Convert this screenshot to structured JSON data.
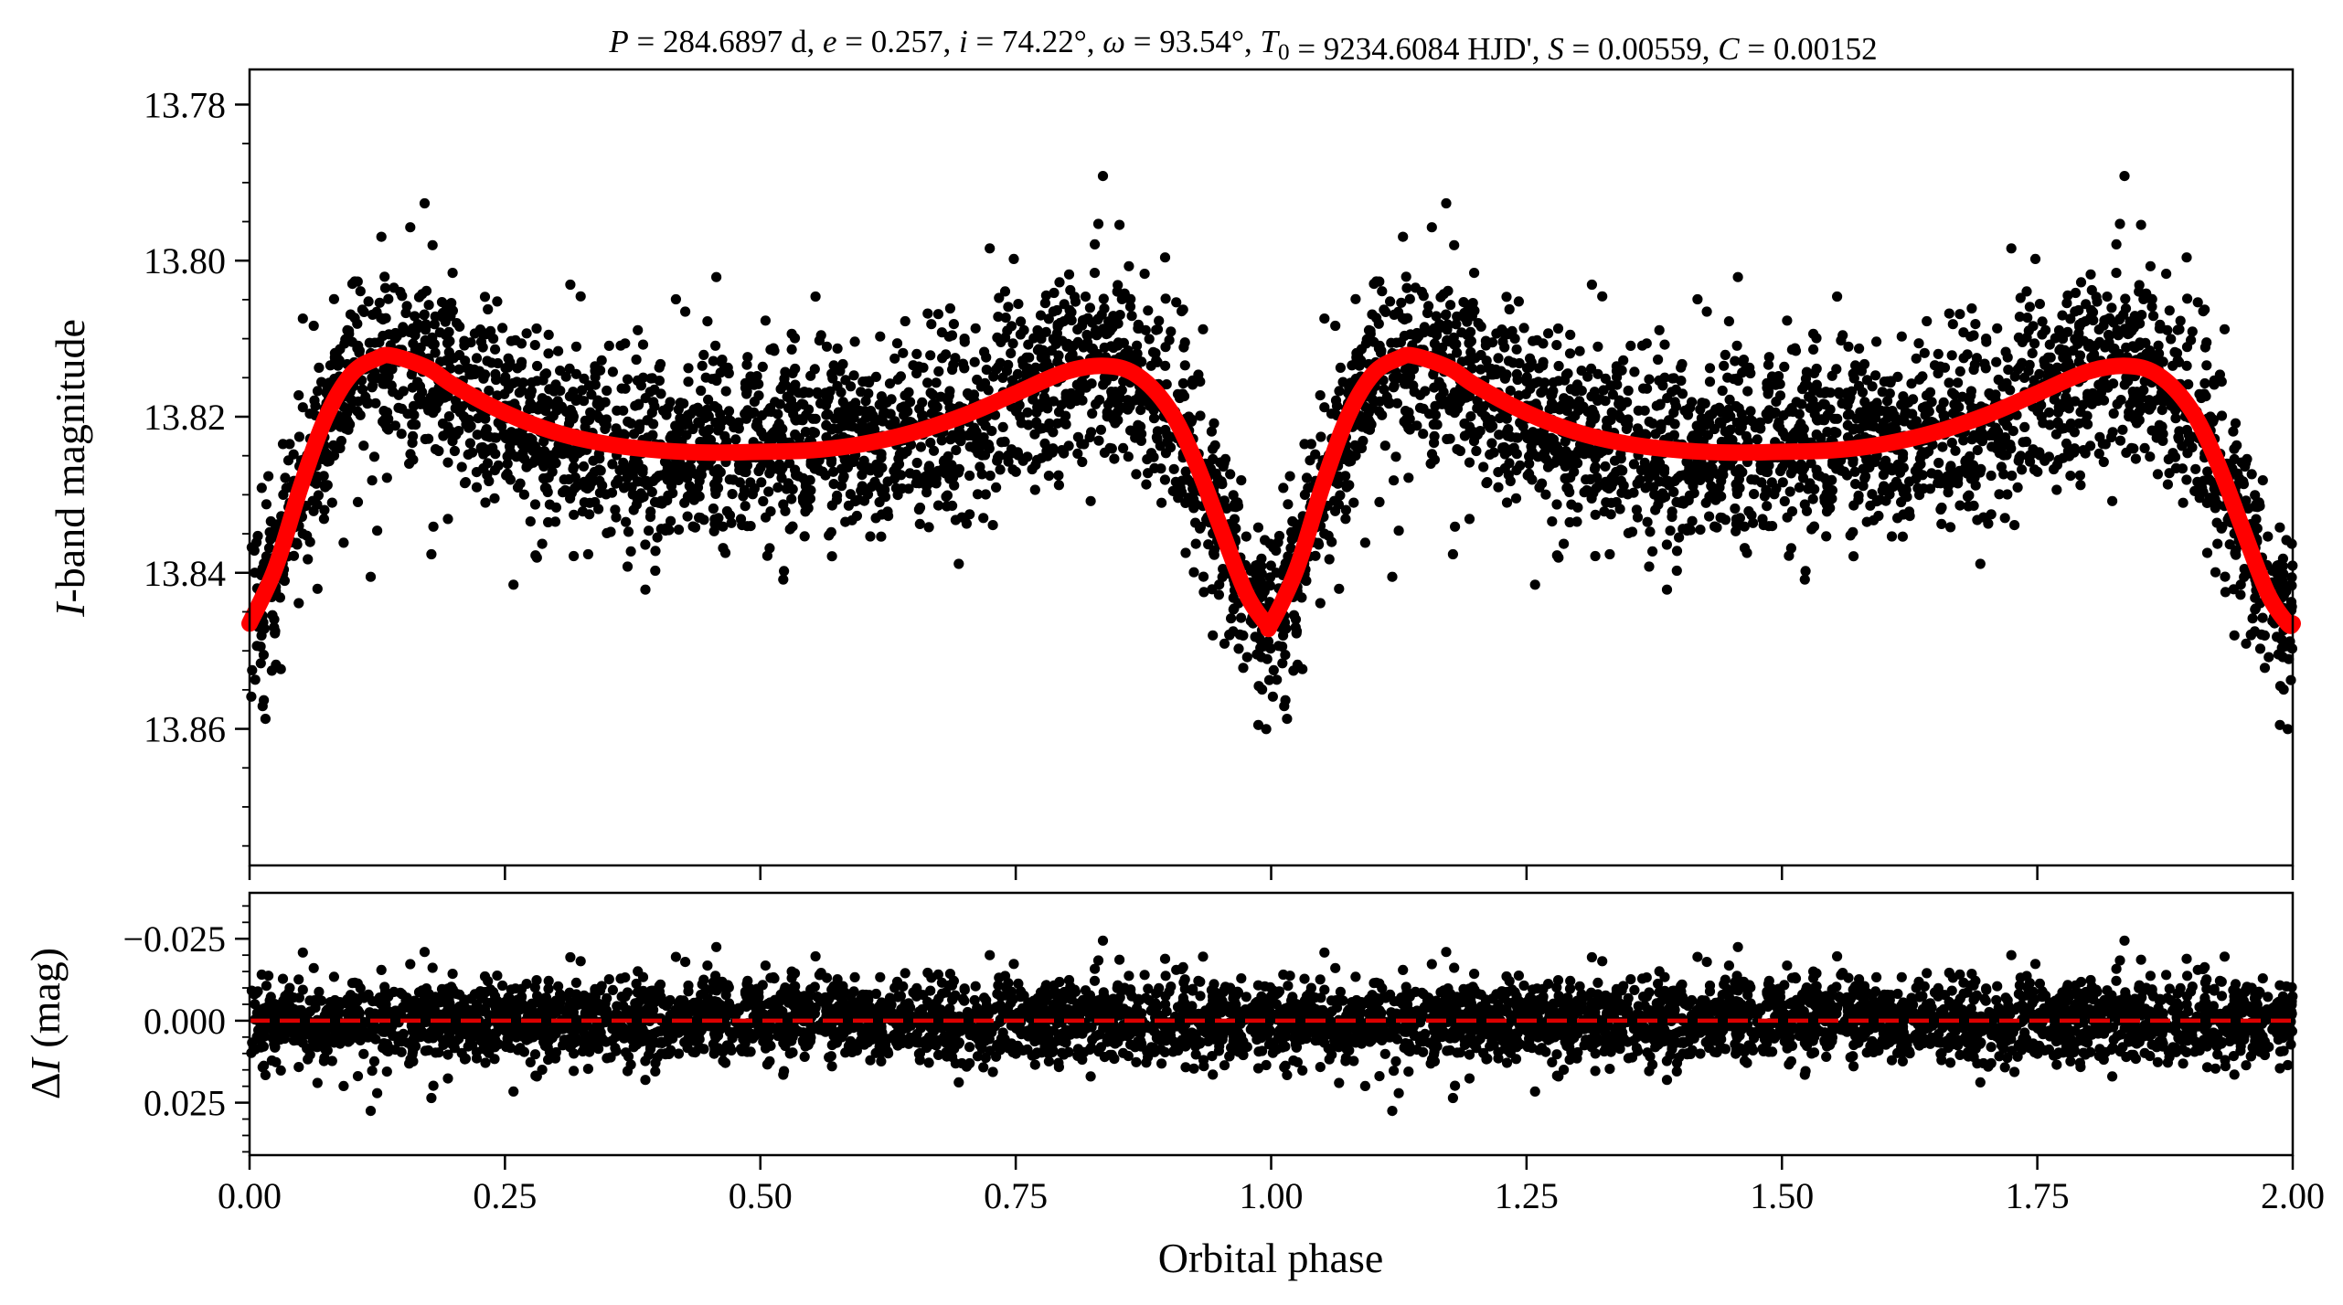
{
  "figure": {
    "title_parts": [
      {
        "it": "P"
      },
      {
        "t": " = 284.6897 d, "
      },
      {
        "it": "e"
      },
      {
        "t": " = 0.257, "
      },
      {
        "it": "i"
      },
      {
        "t": " = 74.22°, "
      },
      {
        "it": "ω"
      },
      {
        "t": " = 93.54°, "
      },
      {
        "it": "T"
      },
      {
        "sub": "0"
      },
      {
        "t": " = 9234.6084 HJD', "
      },
      {
        "it": "S"
      },
      {
        "t": " = 0.00559, "
      },
      {
        "it": "C"
      },
      {
        "t": " = 0.00152"
      }
    ]
  },
  "chart_data": [
    {
      "type": "scatter",
      "panel": "light-curve",
      "xlabel": "Orbital phase",
      "ylabel_parts": [
        {
          "it": "I"
        },
        {
          "t": "-band magnitude"
        }
      ],
      "xlim": [
        0.0,
        2.0
      ],
      "ylim": [
        13.8775,
        13.7755
      ],
      "y_inverted": true,
      "yticks": [
        13.78,
        13.8,
        13.82,
        13.84,
        13.86
      ],
      "ytick_labels": [
        "13.78",
        "13.80",
        "13.82",
        "13.84",
        "13.86"
      ],
      "xticks": [
        0.0,
        0.25,
        0.5,
        0.75,
        1.0,
        1.25,
        1.5,
        1.75,
        2.0
      ],
      "series": [
        {
          "kind": "observations",
          "color": "#000000",
          "point_count_approx": 4800,
          "scatter_sd_mag": 0.006
        },
        {
          "kind": "model",
          "color": "#ff0000",
          "style": "solid-thick",
          "x": [
            0.0,
            0.025,
            0.05,
            0.075,
            0.1,
            0.125,
            0.14,
            0.175,
            0.2,
            0.25,
            0.3,
            0.35,
            0.4,
            0.45,
            0.5,
            0.55,
            0.6,
            0.65,
            0.7,
            0.75,
            0.8,
            0.84,
            0.87,
            0.9,
            0.925,
            0.95,
            0.975,
            0.995,
            1.0,
            1.025,
            1.05,
            1.075,
            1.1,
            1.125,
            1.14,
            1.175,
            1.2,
            1.25,
            1.3,
            1.35,
            1.4,
            1.45,
            1.5,
            1.55,
            1.6,
            1.65,
            1.7,
            1.75,
            1.8,
            1.84,
            1.87,
            1.9,
            1.925,
            1.95,
            1.975,
            1.995,
            2.0
          ],
          "y": [
            13.8465,
            13.8395,
            13.829,
            13.82,
            13.8145,
            13.8125,
            13.8122,
            13.8138,
            13.816,
            13.8195,
            13.822,
            13.8235,
            13.8243,
            13.8246,
            13.8245,
            13.8243,
            13.8235,
            13.822,
            13.8198,
            13.817,
            13.8142,
            13.8135,
            13.8148,
            13.819,
            13.8255,
            13.834,
            13.8425,
            13.8465,
            13.8465,
            13.8395,
            13.829,
            13.82,
            13.8145,
            13.8125,
            13.8122,
            13.8138,
            13.816,
            13.8195,
            13.822,
            13.8235,
            13.8243,
            13.8246,
            13.8245,
            13.8243,
            13.8235,
            13.822,
            13.8198,
            13.817,
            13.8142,
            13.8135,
            13.8148,
            13.819,
            13.8255,
            13.834,
            13.8425,
            13.8465,
            13.8465
          ]
        }
      ]
    },
    {
      "type": "scatter",
      "panel": "residuals",
      "xlabel": "Orbital phase",
      "ylabel_parts": [
        {
          "t": "Δ"
        },
        {
          "it": "I"
        },
        {
          "t": " (mag)"
        }
      ],
      "xlim": [
        0.0,
        2.0
      ],
      "ylim": [
        0.041,
        -0.039
      ],
      "y_inverted": true,
      "yticks": [
        -0.025,
        0.0,
        0.025
      ],
      "ytick_labels": [
        "−0.025",
        "0.000",
        "0.025"
      ],
      "xticks": [
        0.0,
        0.25,
        0.5,
        0.75,
        1.0,
        1.25,
        1.5,
        1.75,
        2.0
      ],
      "xtick_labels": [
        "0.00",
        "0.25",
        "0.50",
        "0.75",
        "1.00",
        "1.25",
        "1.50",
        "1.75",
        "2.00"
      ],
      "series": [
        {
          "kind": "residuals",
          "color": "#000000",
          "point_count_approx": 4800,
          "scatter_sd_mag": 0.006
        },
        {
          "kind": "zero-line",
          "color": "#dd0000",
          "style": "dashed",
          "y": 0.0
        }
      ]
    }
  ]
}
